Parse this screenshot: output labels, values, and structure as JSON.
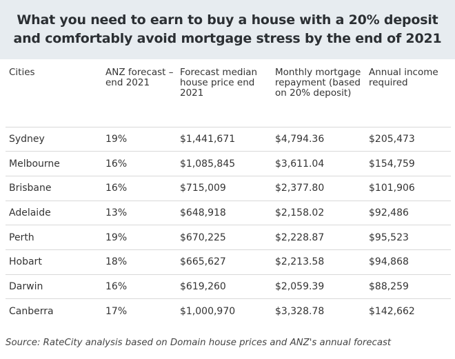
{
  "title": {
    "line1": "What you need to earn to buy a house with a 20% deposit",
    "line2": "and comfortably avoid mortgage stress by the end of 2021"
  },
  "table": {
    "headers": [
      "Cities",
      "ANZ forecast – end 2021",
      "Forecast median house price end 2021",
      "Monthly mortgage repayment (based on 20% deposit)",
      "Annual income required"
    ],
    "rows": [
      [
        "Sydney",
        "19%",
        "$1,441,671",
        "$4,794.36",
        "$205,473"
      ],
      [
        "Melbourne",
        "16%",
        "$1,085,845",
        "$3,611.04",
        "$154,759"
      ],
      [
        "Brisbane",
        "16%",
        "$715,009",
        "$2,377.80",
        "$101,906"
      ],
      [
        "Adelaide",
        "13%",
        "$648,918",
        "$2,158.02",
        "$92,486"
      ],
      [
        "Perth",
        "19%",
        "$670,225",
        "$2,228.87",
        "$95,523"
      ],
      [
        "Hobart",
        "18%",
        "$665,627",
        "$2,213.58",
        "$94,868"
      ],
      [
        "Darwin",
        "16%",
        "$619,260",
        "$2,059.39",
        "$88,259"
      ],
      [
        "Canberra",
        "17%",
        "$1,000,970",
        "$3,328.78",
        "$142,662"
      ]
    ]
  },
  "source": "Source: RateCity analysis based on Domain house prices and ANZ's annual forecast"
}
